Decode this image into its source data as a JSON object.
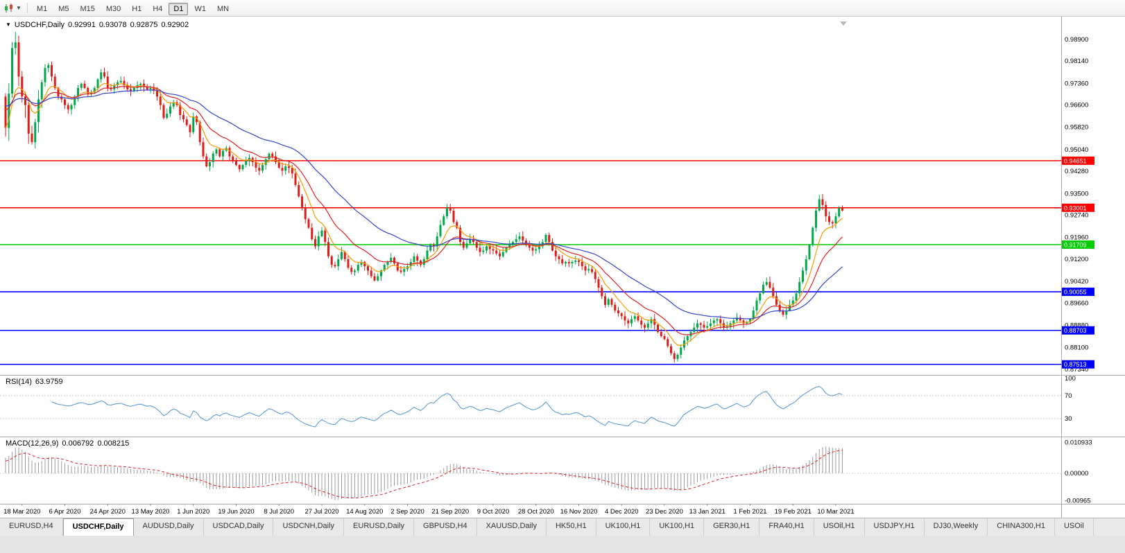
{
  "toolbar": {
    "chart_type_icon": "candlestick-chart-icon",
    "dropdown_icon": "chevron-down-icon",
    "timeframes": [
      {
        "label": "M1",
        "active": false
      },
      {
        "label": "M5",
        "active": false
      },
      {
        "label": "M15",
        "active": false
      },
      {
        "label": "M30",
        "active": false
      },
      {
        "label": "H1",
        "active": false
      },
      {
        "label": "H4",
        "active": false
      },
      {
        "label": "D1",
        "active": true
      },
      {
        "label": "W1",
        "active": false
      },
      {
        "label": "MN",
        "active": false
      }
    ]
  },
  "quote_bar": {
    "collapse_icon": "triangle-down-icon",
    "symbol": "USDCHF,Daily",
    "open": "0.92991",
    "high": "0.93078",
    "low": "0.92875",
    "close": "0.92902"
  },
  "rsi_panel": {
    "title": "RSI(14)",
    "value": "63.9759",
    "axis_labels": [
      "100",
      "70",
      "30"
    ],
    "levels": [
      70,
      30
    ],
    "line_color": "#5e9bd6"
  },
  "macd_panel": {
    "title": "MACD(12,26,9)",
    "value_main": "0.006792",
    "value_signal": "0.008215",
    "axis_labels": [
      "0.010933",
      "0.00000",
      "-0.00965"
    ],
    "histogram_color": "#9a9a9a",
    "signal_color": "#e02020"
  },
  "colors": {
    "bull": "#00a84a",
    "bear": "#dd1d17",
    "background": "#ffffff",
    "axis_text": "#000000",
    "ma_fast": "#f59a00",
    "ma_mid": "#e02020",
    "ma_slow": "#3344cc"
  },
  "tabs": [
    {
      "label": "EURUSD,H4",
      "active": false
    },
    {
      "label": "USDCHF,Daily",
      "active": true
    },
    {
      "label": "AUDUSD,Daily",
      "active": false
    },
    {
      "label": "USDCAD,Daily",
      "active": false
    },
    {
      "label": "USDCNH,Daily",
      "active": false
    },
    {
      "label": "EURUSD,Daily",
      "active": false
    },
    {
      "label": "GBPUSD,H4",
      "active": false
    },
    {
      "label": "XAUUSD,Daily",
      "active": false
    },
    {
      "label": "HK50,H1",
      "active": false
    },
    {
      "label": "UK100,H1",
      "active": false
    },
    {
      "label": "UK100,H1",
      "active": false
    },
    {
      "label": "GER30,H1",
      "active": false
    },
    {
      "label": "FRA40,H1",
      "active": false
    },
    {
      "label": "USOil,H1",
      "active": false
    },
    {
      "label": "USDJPY,H1",
      "active": false
    },
    {
      "label": "DJ30,Weekly",
      "active": false
    },
    {
      "label": "CHINA300,H1",
      "active": false
    },
    {
      "label": "USOil",
      "active": false
    }
  ],
  "chart_data": {
    "type": "candlestick",
    "symbol": "USDCHF",
    "timeframe": "Daily",
    "current": {
      "open": 0.92991,
      "high": 0.93078,
      "low": 0.92875,
      "close": 0.92902
    },
    "y_axis": {
      "labels": [
        "0.98900",
        "0.98140",
        "0.97360",
        "0.96600",
        "0.95820",
        "0.95040",
        "0.94280",
        "0.93500",
        "0.92740",
        "0.91960",
        "0.91200",
        "0.90420",
        "0.89660",
        "0.88880",
        "0.88100",
        "0.87340"
      ],
      "view_range": [
        0.8715,
        0.997
      ]
    },
    "x_axis": {
      "labels": [
        {
          "label": "18 Mar 2020",
          "idx": 5
        },
        {
          "label": "6 Apr 2020",
          "idx": 18
        },
        {
          "label": "24 Apr 2020",
          "idx": 31
        },
        {
          "label": "13 May 2020",
          "idx": 44
        },
        {
          "label": "1 Jun 2020",
          "idx": 57
        },
        {
          "label": "19 Jun 2020",
          "idx": 70
        },
        {
          "label": "8 Jul 2020",
          "idx": 83
        },
        {
          "label": "27 Jul 2020",
          "idx": 96
        },
        {
          "label": "14 Aug 2020",
          "idx": 109
        },
        {
          "label": "2 Sep 2020",
          "idx": 122
        },
        {
          "label": "21 Sep 2020",
          "idx": 135
        },
        {
          "label": "9 Oct 2020",
          "idx": 148
        },
        {
          "label": "28 Oct 2020",
          "idx": 161
        },
        {
          "label": "16 Nov 2020",
          "idx": 174
        },
        {
          "label": "4 Dec 2020",
          "idx": 187
        },
        {
          "label": "23 Dec 2020",
          "idx": 200
        },
        {
          "label": "13 Jan 2021",
          "idx": 213
        },
        {
          "label": "1 Feb 2021",
          "idx": 226
        },
        {
          "label": "19 Feb 2021",
          "idx": 239
        },
        {
          "label": "10 Mar 2021",
          "idx": 252
        }
      ]
    },
    "horizontal_lines": [
      {
        "price": 0.94651,
        "label": "0.94651",
        "color": "#ff0000"
      },
      {
        "price": 0.93001,
        "label": "0.93001",
        "color": "#ff0000"
      },
      {
        "price": 0.91709,
        "label": "0.91709",
        "color": "#00cc00"
      },
      {
        "price": 0.90055,
        "label": "0.90055",
        "color": "#0000ff"
      },
      {
        "price": 0.88703,
        "label": "0.88703",
        "color": "#0000ff"
      },
      {
        "price": 0.87513,
        "label": "0.87513",
        "color": "#0000ff"
      }
    ],
    "moving_averages": [
      {
        "period": 8,
        "color_key": "ma_fast"
      },
      {
        "period": 17,
        "color_key": "ma_mid"
      },
      {
        "period": 40,
        "color_key": "ma_slow"
      }
    ],
    "indicators": {
      "rsi": {
        "period": 14,
        "current": 63.9759
      },
      "macd": {
        "fast": 12,
        "slow": 26,
        "signal": 9,
        "current_main": 0.006792,
        "current_signal": 0.008215
      }
    },
    "closes": [
      0.958,
      0.97,
      0.986,
      0.988,
      0.976,
      0.969,
      0.966,
      0.956,
      0.953,
      0.96,
      0.968,
      0.974,
      0.979,
      0.98,
      0.976,
      0.972,
      0.969,
      0.968,
      0.966,
      0.9645,
      0.966,
      0.969,
      0.972,
      0.9735,
      0.972,
      0.97,
      0.9705,
      0.972,
      0.975,
      0.9775,
      0.976,
      0.972,
      0.9715,
      0.973,
      0.974,
      0.9745,
      0.973,
      0.9715,
      0.971,
      0.972,
      0.973,
      0.9735,
      0.9725,
      0.9715,
      0.972,
      0.971,
      0.969,
      0.966,
      0.9615,
      0.963,
      0.9655,
      0.967,
      0.966,
      0.9625,
      0.961,
      0.959,
      0.9565,
      0.962,
      0.96,
      0.953,
      0.948,
      0.9445,
      0.946,
      0.949,
      0.9505,
      0.948,
      0.95,
      0.951,
      0.948,
      0.9465,
      0.945,
      0.9435,
      0.945,
      0.9465,
      0.9475,
      0.946,
      0.944,
      0.943,
      0.945,
      0.947,
      0.949,
      0.948,
      0.946,
      0.944,
      0.943,
      0.9445,
      0.944,
      0.942,
      0.938,
      0.934,
      0.93,
      0.926,
      0.923,
      0.919,
      0.9165,
      0.92,
      0.922,
      0.918,
      0.913,
      0.91,
      0.9095,
      0.912,
      0.9145,
      0.912,
      0.909,
      0.9075,
      0.908,
      0.91,
      0.911,
      0.9095,
      0.908,
      0.906,
      0.9045,
      0.906,
      0.908,
      0.91,
      0.911,
      0.9125,
      0.9105,
      0.908,
      0.9075,
      0.9085,
      0.9095,
      0.911,
      0.913,
      0.9115,
      0.91,
      0.912,
      0.915,
      0.917,
      0.9165,
      0.92,
      0.924,
      0.927,
      0.93,
      0.929,
      0.925,
      0.923,
      0.918,
      0.916,
      0.9175,
      0.919,
      0.918,
      0.916,
      0.9145,
      0.915,
      0.9165,
      0.9155,
      0.915,
      0.914,
      0.913,
      0.9145,
      0.916,
      0.917,
      0.918,
      0.919,
      0.92,
      0.9185,
      0.917,
      0.916,
      0.915,
      0.9155,
      0.9165,
      0.918,
      0.9205,
      0.918,
      0.915,
      0.913,
      0.912,
      0.9105,
      0.911,
      0.9105,
      0.911,
      0.9115,
      0.911,
      0.9095,
      0.908,
      0.9085,
      0.9075,
      0.905,
      0.902,
      0.899,
      0.896,
      0.898,
      0.896,
      0.894,
      0.893,
      0.892,
      0.8905,
      0.8895,
      0.891,
      0.892,
      0.8905,
      0.889,
      0.888,
      0.8895,
      0.891,
      0.889,
      0.8865,
      0.885,
      0.884,
      0.8815,
      0.879,
      0.877,
      0.8785,
      0.881,
      0.8835,
      0.885,
      0.8865,
      0.888,
      0.8895,
      0.889,
      0.888,
      0.8885,
      0.8895,
      0.8905,
      0.891,
      0.8895,
      0.888,
      0.8885,
      0.8895,
      0.8905,
      0.8915,
      0.8905,
      0.8895,
      0.89,
      0.891,
      0.894,
      0.8975,
      0.9,
      0.903,
      0.904,
      0.902,
      0.899,
      0.896,
      0.894,
      0.8925,
      0.894,
      0.896,
      0.8975,
      0.9,
      0.904,
      0.908,
      0.912,
      0.917,
      0.923,
      0.929,
      0.933,
      0.931,
      0.927,
      0.925,
      0.9245,
      0.927,
      0.93,
      0.92902
    ]
  }
}
